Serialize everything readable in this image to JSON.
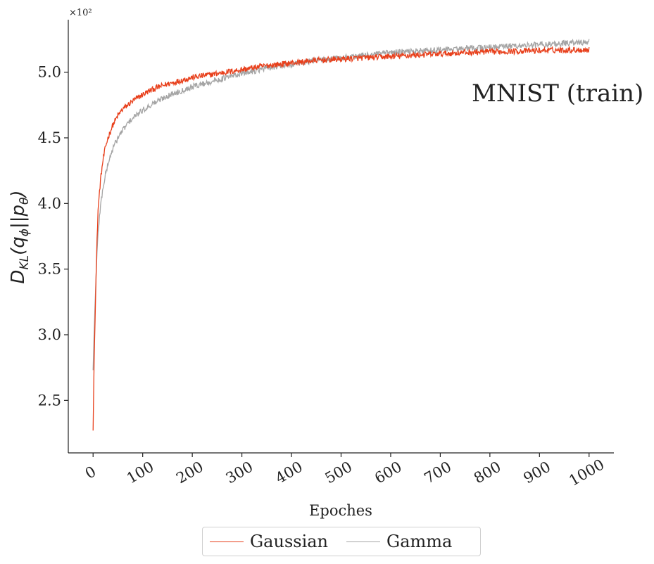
{
  "chart_data": {
    "type": "line",
    "title": "",
    "annotation": "MNIST (train)",
    "xlabel": "Epoches",
    "ylabel": "D_KL(q_φ||p_θ)",
    "ylabel_parts": {
      "base": "D",
      "sub": "KL",
      "open": "(q",
      "phi": "ϕ",
      "mid": "||p",
      "theta": "θ",
      "close": ")"
    },
    "y_scale_label": "×10²",
    "xlim": [
      -50,
      1050
    ],
    "ylim": [
      2.1,
      5.4
    ],
    "xticks": [
      0,
      100,
      200,
      300,
      400,
      500,
      600,
      700,
      800,
      900,
      1000
    ],
    "xtick_labels": [
      "0",
      "100",
      "200",
      "300",
      "400",
      "500",
      "600",
      "700",
      "800",
      "900",
      "1000"
    ],
    "yticks": [
      2.5,
      3.0,
      3.5,
      4.0,
      4.5,
      5.0
    ],
    "ytick_labels": [
      "2.5",
      "3.0",
      "3.5",
      "4.0",
      "4.5",
      "5.0"
    ],
    "legend_position": "bottom-center",
    "series": [
      {
        "name": "Gaussian",
        "color": "#e8401c",
        "x": [
          0,
          2,
          5,
          8,
          10,
          15,
          20,
          25,
          30,
          40,
          50,
          60,
          70,
          80,
          100,
          120,
          150,
          200,
          250,
          300,
          350,
          400,
          450,
          500,
          550,
          600,
          650,
          700,
          750,
          800,
          850,
          900,
          950,
          1000
        ],
        "y": [
          2.27,
          2.78,
          3.3,
          3.72,
          3.95,
          4.18,
          4.33,
          4.43,
          4.5,
          4.6,
          4.67,
          4.72,
          4.75,
          4.78,
          4.83,
          4.87,
          4.91,
          4.96,
          4.99,
          5.02,
          5.05,
          5.07,
          5.09,
          5.1,
          5.11,
          5.12,
          5.13,
          5.14,
          5.15,
          5.155,
          5.16,
          5.165,
          5.17,
          5.17
        ]
      },
      {
        "name": "Gamma",
        "color": "#a5a5a5",
        "x": [
          0,
          2,
          5,
          8,
          10,
          15,
          20,
          25,
          30,
          40,
          50,
          60,
          70,
          80,
          100,
          120,
          150,
          200,
          250,
          300,
          350,
          400,
          450,
          500,
          550,
          600,
          650,
          700,
          750,
          800,
          850,
          900,
          950,
          1000
        ],
        "y": [
          2.73,
          3.0,
          3.35,
          3.62,
          3.78,
          3.98,
          4.12,
          4.22,
          4.3,
          4.42,
          4.5,
          4.56,
          4.61,
          4.65,
          4.71,
          4.76,
          4.82,
          4.89,
          4.94,
          4.99,
          5.03,
          5.06,
          5.09,
          5.11,
          5.13,
          5.15,
          5.16,
          5.17,
          5.18,
          5.19,
          5.2,
          5.21,
          5.22,
          5.23
        ]
      }
    ]
  }
}
